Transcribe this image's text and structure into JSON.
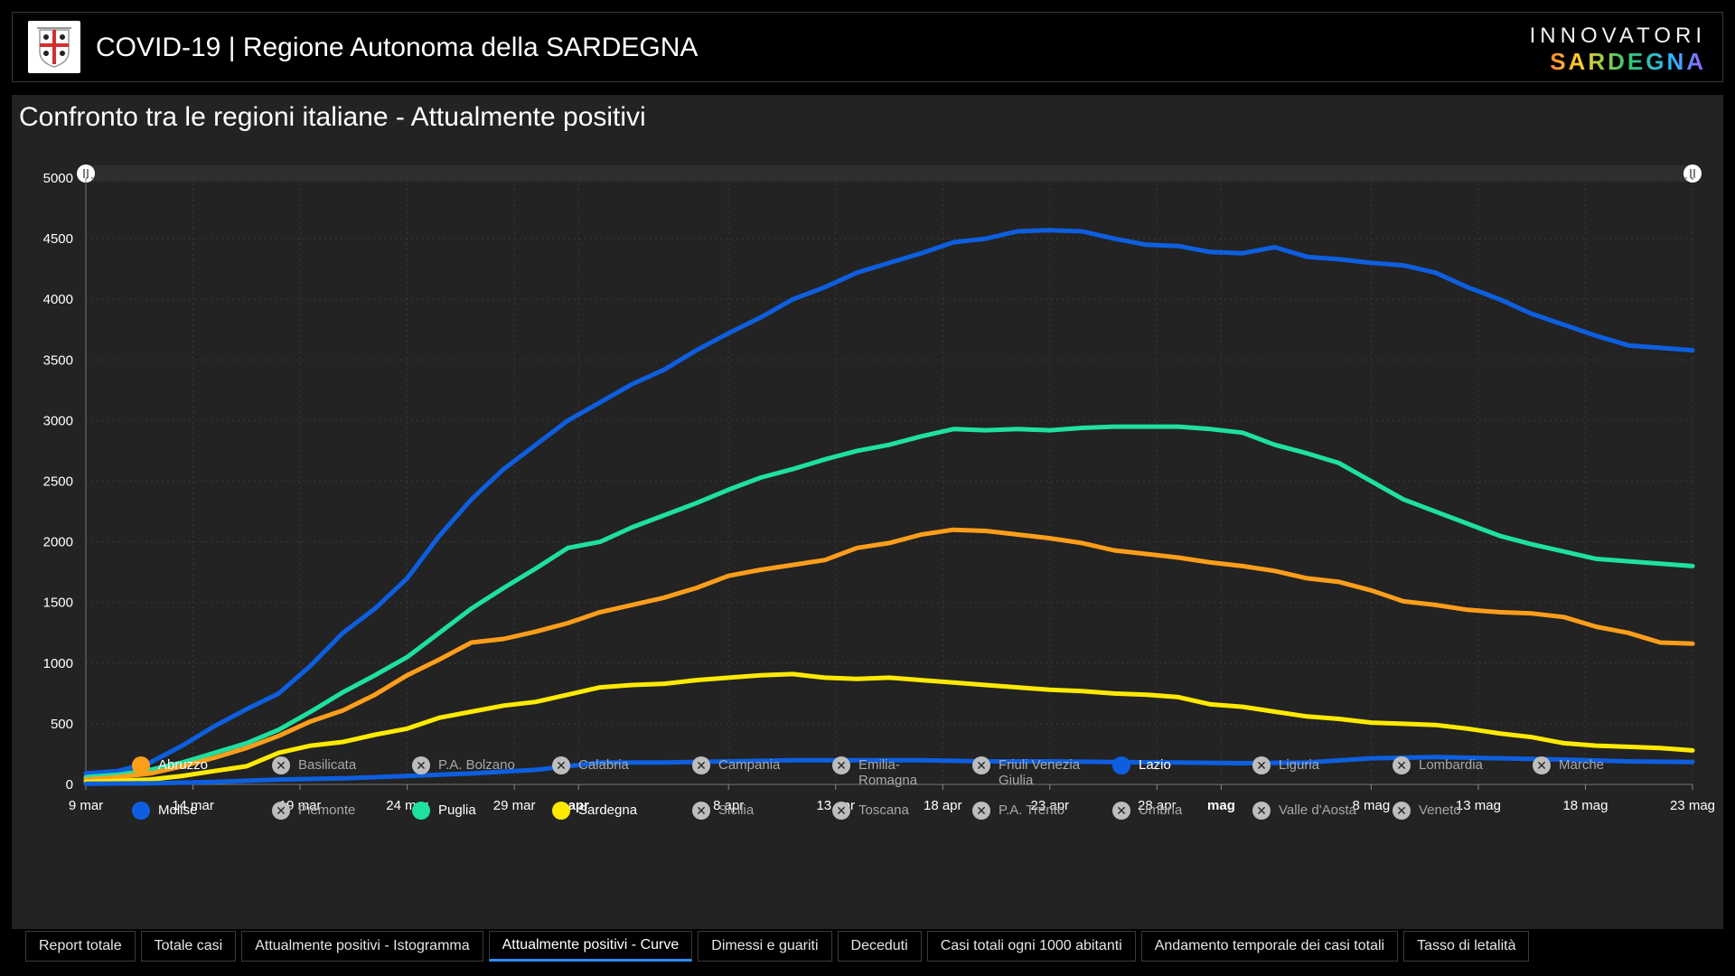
{
  "header": {
    "title": "COVID-19 | Regione Autonoma della SARDEGNA",
    "brand_top": "INNOVATORI",
    "brand_bottom": "SARDEGNA"
  },
  "panel": {
    "title": "Confronto tra le regioni italiane - Attualmente positivi"
  },
  "chart_data": {
    "type": "line",
    "title": "Confronto tra le regioni italiane - Attualmente positivi",
    "ylim": [
      0,
      5000
    ],
    "yticks": [
      0,
      500,
      1000,
      1500,
      2000,
      2500,
      3000,
      3500,
      4000,
      4500,
      5000
    ],
    "x_start_day": 0,
    "x_end_day": 75,
    "xticks": [
      {
        "day": 0,
        "label": "9 mar",
        "bold": false
      },
      {
        "day": 5,
        "label": "14 mar",
        "bold": false
      },
      {
        "day": 10,
        "label": "19 mar",
        "bold": false
      },
      {
        "day": 15,
        "label": "24 mar",
        "bold": false
      },
      {
        "day": 20,
        "label": "29 mar",
        "bold": false
      },
      {
        "day": 23,
        "label": "apr",
        "bold": true
      },
      {
        "day": 30,
        "label": "8 apr",
        "bold": false
      },
      {
        "day": 35,
        "label": "13 apr",
        "bold": false
      },
      {
        "day": 40,
        "label": "18 apr",
        "bold": false
      },
      {
        "day": 45,
        "label": "23 apr",
        "bold": false
      },
      {
        "day": 50,
        "label": "28 apr",
        "bold": false
      },
      {
        "day": 53,
        "label": "mag",
        "bold": true
      },
      {
        "day": 60,
        "label": "8 mag",
        "bold": false
      },
      {
        "day": 65,
        "label": "13 mag",
        "bold": false
      },
      {
        "day": 70,
        "label": "18 mag",
        "bold": false
      },
      {
        "day": 75,
        "label": "23 mag",
        "bold": false
      }
    ],
    "series": [
      {
        "name": "Lazio",
        "color": "#0d5fe0",
        "points": [
          [
            0,
            90
          ],
          [
            2,
            110
          ],
          [
            4,
            180
          ],
          [
            6,
            320
          ],
          [
            8,
            480
          ],
          [
            10,
            620
          ],
          [
            12,
            750
          ],
          [
            14,
            980
          ],
          [
            16,
            1250
          ],
          [
            18,
            1450
          ],
          [
            20,
            1700
          ],
          [
            22,
            2050
          ],
          [
            24,
            2350
          ],
          [
            26,
            2600
          ],
          [
            28,
            2800
          ],
          [
            30,
            3000
          ],
          [
            32,
            3150
          ],
          [
            34,
            3300
          ],
          [
            36,
            3420
          ],
          [
            38,
            3580
          ],
          [
            40,
            3720
          ],
          [
            42,
            3850
          ],
          [
            44,
            4000
          ],
          [
            46,
            4100
          ],
          [
            48,
            4220
          ],
          [
            50,
            4300
          ],
          [
            52,
            4380
          ],
          [
            54,
            4470
          ],
          [
            56,
            4500
          ],
          [
            58,
            4560
          ],
          [
            60,
            4570
          ],
          [
            62,
            4560
          ],
          [
            64,
            4500
          ],
          [
            66,
            4450
          ],
          [
            68,
            4440
          ],
          [
            70,
            4390
          ],
          [
            72,
            4380
          ],
          [
            74,
            4430
          ],
          [
            76,
            4350
          ],
          [
            78,
            4330
          ],
          [
            80,
            4300
          ],
          [
            82,
            4280
          ],
          [
            84,
            4220
          ],
          [
            86,
            4100
          ],
          [
            88,
            4000
          ],
          [
            90,
            3880
          ],
          [
            92,
            3790
          ],
          [
            94,
            3700
          ],
          [
            96,
            3620
          ],
          [
            98,
            3600
          ],
          [
            100,
            3580
          ]
        ]
      },
      {
        "name": "Puglia",
        "color": "#1fe0a0",
        "points": [
          [
            0,
            60
          ],
          [
            2,
            80
          ],
          [
            4,
            120
          ],
          [
            6,
            180
          ],
          [
            8,
            260
          ],
          [
            10,
            340
          ],
          [
            12,
            450
          ],
          [
            14,
            600
          ],
          [
            16,
            760
          ],
          [
            18,
            900
          ],
          [
            20,
            1050
          ],
          [
            22,
            1250
          ],
          [
            24,
            1450
          ],
          [
            26,
            1620
          ],
          [
            28,
            1780
          ],
          [
            30,
            1950
          ],
          [
            32,
            2000
          ],
          [
            34,
            2120
          ],
          [
            36,
            2220
          ],
          [
            38,
            2320
          ],
          [
            40,
            2430
          ],
          [
            42,
            2530
          ],
          [
            44,
            2600
          ],
          [
            46,
            2680
          ],
          [
            48,
            2750
          ],
          [
            50,
            2800
          ],
          [
            52,
            2870
          ],
          [
            54,
            2930
          ],
          [
            56,
            2920
          ],
          [
            58,
            2930
          ],
          [
            60,
            2920
          ],
          [
            62,
            2940
          ],
          [
            64,
            2950
          ],
          [
            66,
            2950
          ],
          [
            68,
            2950
          ],
          [
            70,
            2930
          ],
          [
            72,
            2900
          ],
          [
            74,
            2800
          ],
          [
            76,
            2730
          ],
          [
            78,
            2650
          ],
          [
            80,
            2500
          ],
          [
            82,
            2350
          ],
          [
            84,
            2250
          ],
          [
            86,
            2150
          ],
          [
            88,
            2050
          ],
          [
            90,
            1980
          ],
          [
            92,
            1920
          ],
          [
            94,
            1860
          ],
          [
            96,
            1840
          ],
          [
            98,
            1820
          ],
          [
            100,
            1800
          ]
        ]
      },
      {
        "name": "Abruzzo",
        "color": "#ff9e1b",
        "points": [
          [
            0,
            40
          ],
          [
            2,
            60
          ],
          [
            4,
            90
          ],
          [
            6,
            150
          ],
          [
            8,
            220
          ],
          [
            10,
            300
          ],
          [
            12,
            400
          ],
          [
            14,
            520
          ],
          [
            16,
            610
          ],
          [
            18,
            740
          ],
          [
            20,
            900
          ],
          [
            22,
            1030
          ],
          [
            24,
            1170
          ],
          [
            26,
            1200
          ],
          [
            28,
            1260
          ],
          [
            30,
            1330
          ],
          [
            32,
            1420
          ],
          [
            34,
            1480
          ],
          [
            36,
            1540
          ],
          [
            38,
            1620
          ],
          [
            40,
            1720
          ],
          [
            42,
            1770
          ],
          [
            44,
            1810
          ],
          [
            46,
            1850
          ],
          [
            48,
            1950
          ],
          [
            50,
            1990
          ],
          [
            52,
            2060
          ],
          [
            54,
            2100
          ],
          [
            56,
            2090
          ],
          [
            58,
            2060
          ],
          [
            60,
            2030
          ],
          [
            62,
            1990
          ],
          [
            64,
            1930
          ],
          [
            66,
            1900
          ],
          [
            68,
            1870
          ],
          [
            70,
            1830
          ],
          [
            72,
            1800
          ],
          [
            74,
            1760
          ],
          [
            76,
            1700
          ],
          [
            78,
            1670
          ],
          [
            80,
            1600
          ],
          [
            82,
            1510
          ],
          [
            84,
            1480
          ],
          [
            86,
            1440
          ],
          [
            88,
            1420
          ],
          [
            90,
            1410
          ],
          [
            92,
            1380
          ],
          [
            94,
            1300
          ],
          [
            96,
            1250
          ],
          [
            98,
            1170
          ],
          [
            100,
            1160
          ]
        ]
      },
      {
        "name": "Sardegna",
        "color": "#ffea00",
        "points": [
          [
            0,
            20
          ],
          [
            2,
            30
          ],
          [
            4,
            40
          ],
          [
            6,
            70
          ],
          [
            8,
            110
          ],
          [
            10,
            150
          ],
          [
            12,
            260
          ],
          [
            14,
            320
          ],
          [
            16,
            350
          ],
          [
            18,
            410
          ],
          [
            20,
            460
          ],
          [
            22,
            550
          ],
          [
            24,
            600
          ],
          [
            26,
            650
          ],
          [
            28,
            680
          ],
          [
            30,
            740
          ],
          [
            32,
            800
          ],
          [
            34,
            820
          ],
          [
            36,
            830
          ],
          [
            38,
            860
          ],
          [
            40,
            880
          ],
          [
            42,
            900
          ],
          [
            44,
            910
          ],
          [
            46,
            880
          ],
          [
            48,
            870
          ],
          [
            50,
            880
          ],
          [
            52,
            860
          ],
          [
            54,
            840
          ],
          [
            56,
            820
          ],
          [
            58,
            800
          ],
          [
            60,
            780
          ],
          [
            62,
            770
          ],
          [
            64,
            750
          ],
          [
            66,
            740
          ],
          [
            68,
            720
          ],
          [
            70,
            660
          ],
          [
            72,
            640
          ],
          [
            74,
            600
          ],
          [
            76,
            560
          ],
          [
            78,
            540
          ],
          [
            80,
            510
          ],
          [
            82,
            500
          ],
          [
            84,
            490
          ],
          [
            86,
            460
          ],
          [
            88,
            420
          ],
          [
            90,
            390
          ],
          [
            92,
            340
          ],
          [
            94,
            320
          ],
          [
            96,
            310
          ],
          [
            98,
            300
          ],
          [
            100,
            280
          ]
        ]
      },
      {
        "name": "Molise",
        "color": "#0d5fe0",
        "points": [
          [
            0,
            5
          ],
          [
            4,
            10
          ],
          [
            8,
            20
          ],
          [
            12,
            40
          ],
          [
            16,
            50
          ],
          [
            20,
            70
          ],
          [
            24,
            90
          ],
          [
            28,
            120
          ],
          [
            30,
            150
          ],
          [
            32,
            180
          ],
          [
            36,
            180
          ],
          [
            40,
            190
          ],
          [
            44,
            200
          ],
          [
            48,
            200
          ],
          [
            52,
            200
          ],
          [
            56,
            190
          ],
          [
            60,
            190
          ],
          [
            64,
            185
          ],
          [
            68,
            180
          ],
          [
            72,
            175
          ],
          [
            76,
            180
          ],
          [
            80,
            215
          ],
          [
            84,
            225
          ],
          [
            88,
            215
          ],
          [
            92,
            205
          ],
          [
            96,
            190
          ],
          [
            100,
            185
          ]
        ]
      }
    ],
    "legend": [
      {
        "name": "Abruzzo",
        "active": true,
        "color": "#ff9e1b"
      },
      {
        "name": "Basilicata",
        "active": false
      },
      {
        "name": "P.A. Bolzano",
        "active": false
      },
      {
        "name": "Calabria",
        "active": false
      },
      {
        "name": "Campania",
        "active": false
      },
      {
        "name": "Emilia-Romagna",
        "active": false
      },
      {
        "name": "Friuli Venezia Giulia",
        "active": false
      },
      {
        "name": "Lazio",
        "active": true,
        "color": "#0d5fe0"
      },
      {
        "name": "Liguria",
        "active": false
      },
      {
        "name": "Lombardia",
        "active": false
      },
      {
        "name": "Marche",
        "active": false
      },
      {
        "name": "Molise",
        "active": true,
        "color": "#0d5fe0"
      },
      {
        "name": "Piemonte",
        "active": false
      },
      {
        "name": "Puglia",
        "active": true,
        "color": "#1fe0a0"
      },
      {
        "name": "Sardegna",
        "active": true,
        "color": "#ffea00"
      },
      {
        "name": "Sicilia",
        "active": false
      },
      {
        "name": "Toscana",
        "active": false
      },
      {
        "name": "P.A. Trento",
        "active": false
      },
      {
        "name": "Umbria",
        "active": false
      },
      {
        "name": "Valle d'Aosta",
        "active": false
      },
      {
        "name": "Veneto",
        "active": false
      }
    ]
  },
  "tabs": [
    {
      "label": "Report totale",
      "active": false
    },
    {
      "label": "Totale casi",
      "active": false
    },
    {
      "label": "Attualmente positivi - Istogramma",
      "active": false
    },
    {
      "label": "Attualmente positivi - Curve",
      "active": true
    },
    {
      "label": "Dimessi e guariti",
      "active": false
    },
    {
      "label": "Deceduti",
      "active": false
    },
    {
      "label": "Casi totali ogni 1000 abitanti",
      "active": false
    },
    {
      "label": "Andamento temporale dei casi totali",
      "active": false
    },
    {
      "label": "Tasso di letalità",
      "active": false
    }
  ]
}
